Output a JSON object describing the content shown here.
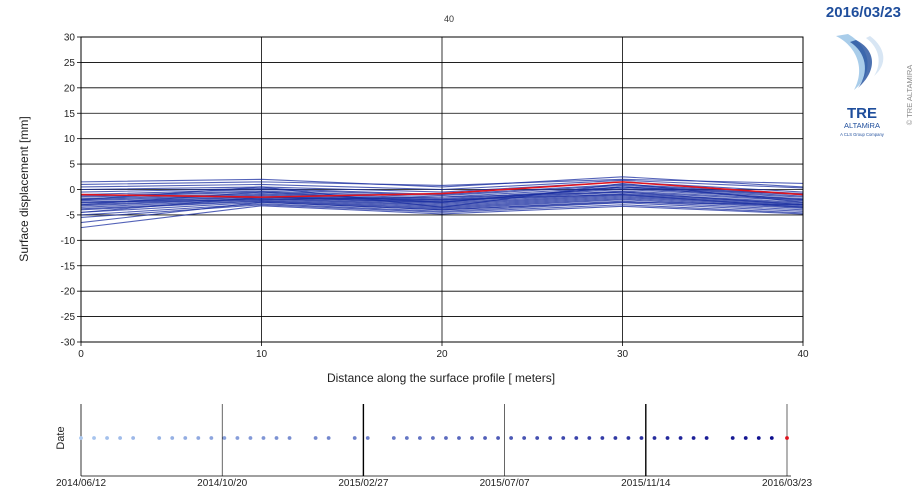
{
  "header": {
    "date": "2016/03/23",
    "logo_text_1": "TRE",
    "logo_text_2": "ALTAMiRA",
    "logo_text_3": "A CLS Group Company",
    "copyright": "© TRE ALTAMIRA",
    "brand_color": "#1f4e9c"
  },
  "chart_data": [
    {
      "type": "line",
      "title": "40",
      "xlabel": "Distance along the surface profile [ meters]",
      "ylabel": "Surface displacement [mm]",
      "xlim": [
        0,
        40
      ],
      "ylim": [
        -30,
        30
      ],
      "xticks": [
        0,
        10,
        20,
        30,
        40
      ],
      "yticks": [
        30,
        25,
        20,
        15,
        10,
        5,
        0,
        -5,
        -10,
        -15,
        -20,
        -25,
        -30
      ],
      "grid": true,
      "x": [
        0,
        10,
        20,
        30,
        40
      ],
      "series_color": "#1a2ea0",
      "highlight_color": "#e0141e",
      "series": [
        {
          "values": [
            1.5,
            2.0,
            0.5,
            2.5,
            0.5
          ]
        },
        {
          "values": [
            1.0,
            1.5,
            0.8,
            2.0,
            1.2
          ]
        },
        {
          "values": [
            0.5,
            1.0,
            0.0,
            1.8,
            0.3
          ]
        },
        {
          "values": [
            0.0,
            0.5,
            -0.5,
            1.5,
            -0.5
          ]
        },
        {
          "values": [
            -0.5,
            0.2,
            -1.0,
            1.0,
            -0.8
          ]
        },
        {
          "values": [
            -1.0,
            0.0,
            -1.2,
            0.8,
            -1.0
          ]
        },
        {
          "values": [
            -1.3,
            -0.3,
            -1.5,
            0.5,
            -1.3
          ]
        },
        {
          "values": [
            -1.5,
            -0.5,
            -1.8,
            0.2,
            -1.5
          ]
        },
        {
          "values": [
            -1.8,
            -0.8,
            -2.0,
            0.0,
            -1.8
          ]
        },
        {
          "values": [
            -2.0,
            -1.0,
            -2.2,
            -0.3,
            -2.0
          ]
        },
        {
          "values": [
            -2.2,
            -1.2,
            -2.4,
            -0.5,
            -2.2
          ]
        },
        {
          "values": [
            -2.5,
            -1.4,
            -2.6,
            -0.8,
            -2.5
          ]
        },
        {
          "values": [
            -2.7,
            -1.5,
            -2.8,
            -1.0,
            -2.7
          ]
        },
        {
          "values": [
            -3.0,
            -1.7,
            -3.0,
            -1.2,
            -2.9
          ]
        },
        {
          "values": [
            -3.2,
            -1.8,
            -3.2,
            -1.4,
            -3.1
          ]
        },
        {
          "values": [
            -3.5,
            -2.0,
            -3.4,
            -1.6,
            -3.3
          ]
        },
        {
          "values": [
            -3.8,
            -2.2,
            -3.6,
            -1.8,
            -3.5
          ]
        },
        {
          "values": [
            -4.0,
            -2.3,
            -3.8,
            -2.0,
            -3.7
          ]
        },
        {
          "values": [
            -4.5,
            -2.5,
            -4.0,
            -2.3,
            -4.0
          ]
        },
        {
          "values": [
            -5.0,
            -2.8,
            -4.3,
            -2.6,
            -4.3
          ]
        },
        {
          "values": [
            -5.5,
            -3.0,
            -4.5,
            -3.0,
            -4.6
          ]
        },
        {
          "values": [
            -6.5,
            -2.5,
            -4.0,
            -2.5,
            -3.0
          ]
        },
        {
          "values": [
            -7.5,
            -3.2,
            -4.8,
            -3.3,
            -4.8
          ]
        },
        {
          "values": [
            -3.0,
            -0.5,
            -2.5,
            0.5,
            -1.0
          ]
        },
        {
          "values": [
            -2.0,
            0.5,
            -3.5,
            1.2,
            -2.5
          ]
        },
        {
          "values": [
            -4.5,
            -1.5,
            -2.0,
            -1.0,
            -3.5
          ]
        },
        {
          "values": [
            -1.0,
            -1.5,
            -2.5,
            0.5,
            -2.0
          ]
        },
        {
          "values": [
            -2.5,
            -2.0,
            -1.5,
            -0.5,
            -3.0
          ]
        }
      ],
      "highlight": {
        "values": [
          -1.0,
          -1.5,
          -0.8,
          1.5,
          -1.0
        ]
      }
    },
    {
      "type": "scatter",
      "ylabel": "Date",
      "ticks": [
        "2014/06/12",
        "2014/10/20",
        "2015/02/27",
        "2015/07/07",
        "2015/11/14",
        "2016/03/23"
      ],
      "dates": [
        "2014/06/12",
        "2014/06/24",
        "2014/07/06",
        "2014/07/18",
        "2014/07/30",
        "2014/08/23",
        "2014/09/04",
        "2014/09/16",
        "2014/09/28",
        "2014/10/10",
        "2014/10/22",
        "2014/11/03",
        "2014/11/15",
        "2014/11/27",
        "2014/12/09",
        "2014/12/21",
        "2015/01/14",
        "2015/01/26",
        "2015/02/19",
        "2015/03/03",
        "2015/03/27",
        "2015/04/08",
        "2015/04/20",
        "2015/05/02",
        "2015/05/14",
        "2015/05/26",
        "2015/06/07",
        "2015/06/19",
        "2015/07/01",
        "2015/07/13",
        "2015/07/25",
        "2015/08/06",
        "2015/08/18",
        "2015/08/30",
        "2015/09/11",
        "2015/09/23",
        "2015/10/05",
        "2015/10/17",
        "2015/10/29",
        "2015/11/10",
        "2015/11/22",
        "2015/12/04",
        "2015/12/16",
        "2015/12/28",
        "2016/01/09",
        "2016/02/02",
        "2016/02/14",
        "2016/02/26",
        "2016/03/09",
        "2016/03/23"
      ],
      "color_start": "#aac8f0",
      "color_end": "#0a0a8c",
      "current_color": "#e0141e"
    }
  ]
}
